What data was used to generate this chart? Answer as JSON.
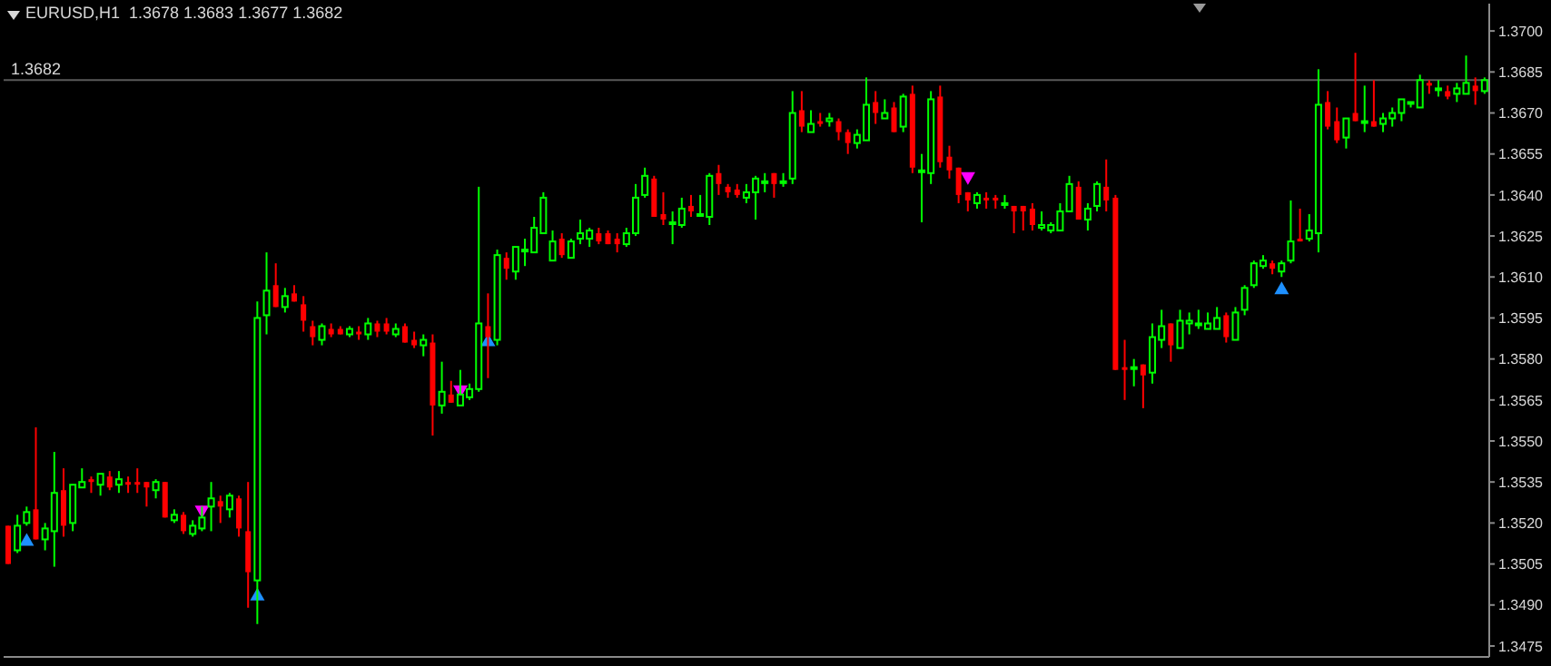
{
  "chart_data": {
    "type": "candlestick",
    "title": "EURUSD,H1  1.3678 1.3683 1.3677 1.3682",
    "categories": [
      null,
      null,
      null,
      null,
      null,
      null,
      null,
      null,
      null,
      null,
      null,
      null,
      null,
      null,
      null,
      null,
      null,
      null,
      null,
      null,
      null,
      null,
      null,
      null,
      null,
      null,
      null,
      null,
      null,
      null,
      null,
      null,
      null,
      null,
      null,
      null,
      null,
      null,
      null,
      null,
      null,
      null,
      null,
      null,
      null,
      null,
      null,
      null,
      null,
      null,
      null,
      null,
      null,
      null,
      null,
      null,
      null,
      null,
      null,
      null,
      null,
      null,
      null,
      null,
      null,
      null,
      null,
      null,
      null,
      null,
      null,
      null,
      null,
      null,
      null,
      null,
      null,
      null,
      null,
      null,
      null,
      null,
      null,
      null,
      null,
      null,
      null,
      null,
      null,
      null,
      null,
      null,
      null,
      null,
      null,
      null,
      null,
      null,
      null,
      null,
      null,
      null,
      null,
      null,
      null,
      null,
      null,
      null,
      null,
      null,
      null,
      null,
      null,
      null,
      null,
      null,
      null,
      null,
      null,
      null,
      null,
      null,
      null,
      null,
      null,
      null,
      null,
      null,
      null,
      null,
      null,
      null,
      null,
      null,
      null,
      null,
      null,
      null,
      null,
      null,
      null,
      null,
      null,
      null,
      null,
      null,
      null,
      null,
      null,
      null,
      null,
      null,
      null,
      null,
      null,
      null,
      null,
      null,
      null,
      null,
      null
    ],
    "ohlc": [
      [
        1.3519,
        1.3519,
        1.3505,
        1.3505
      ],
      [
        1.351,
        1.3523,
        1.3509,
        1.3519
      ],
      [
        1.352,
        1.3526,
        1.3519,
        1.3524
      ],
      [
        1.3525,
        1.3555,
        1.3514,
        1.3514
      ],
      [
        1.3514,
        1.352,
        1.351,
        1.3518
      ],
      [
        1.3517,
        1.3546,
        1.3504,
        1.3531
      ],
      [
        1.3532,
        1.354,
        1.3515,
        1.3519
      ],
      [
        1.352,
        1.3534,
        1.3517,
        1.3534
      ],
      [
        1.3533,
        1.354,
        1.3533,
        1.3535
      ],
      [
        1.3536,
        1.3537,
        1.3531,
        1.3535
      ],
      [
        1.3534,
        1.3538,
        1.353,
        1.3538
      ],
      [
        1.3537,
        1.3539,
        1.3532,
        1.3533
      ],
      [
        1.3534,
        1.3539,
        1.3531,
        1.3536
      ],
      [
        1.3535,
        1.3537,
        1.3531,
        1.3534
      ],
      [
        1.3535,
        1.354,
        1.3531,
        1.3534
      ],
      [
        1.3535,
        1.3535,
        1.3526,
        1.3533
      ],
      [
        1.3532,
        1.3536,
        1.3529,
        1.3535
      ],
      [
        1.3535,
        1.3535,
        1.3522,
        1.3522
      ],
      [
        1.3521,
        1.3525,
        1.352,
        1.3523
      ],
      [
        1.3523,
        1.3524,
        1.3516,
        1.3517
      ],
      [
        1.3516,
        1.3521,
        1.3515,
        1.3519
      ],
      [
        1.3518,
        1.3526,
        1.3517,
        1.3522
      ],
      [
        1.3526,
        1.3535,
        1.3517,
        1.3529
      ],
      [
        1.3528,
        1.353,
        1.352,
        1.3526
      ],
      [
        1.3525,
        1.3531,
        1.3522,
        1.353
      ],
      [
        1.3529,
        1.353,
        1.3515,
        1.3518
      ],
      [
        1.3517,
        1.3535,
        1.3489,
        1.3502
      ],
      [
        1.3499,
        1.3601,
        1.3483,
        1.3595
      ],
      [
        1.3596,
        1.3619,
        1.3589,
        1.3605
      ],
      [
        1.3607,
        1.3615,
        1.3599,
        1.3599
      ],
      [
        1.3599,
        1.3606,
        1.3597,
        1.3603
      ],
      [
        1.3604,
        1.3607,
        1.3601,
        1.3601
      ],
      [
        1.36,
        1.3603,
        1.359,
        1.3594
      ],
      [
        1.3592,
        1.3594,
        1.3585,
        1.3588
      ],
      [
        1.3587,
        1.3593,
        1.3585,
        1.3592
      ],
      [
        1.3591,
        1.3593,
        1.3588,
        1.3589
      ],
      [
        1.3591,
        1.3592,
        1.3589,
        1.3589
      ],
      [
        1.3589,
        1.3592,
        1.3588,
        1.3591
      ],
      [
        1.359,
        1.3592,
        1.3587,
        1.3589
      ],
      [
        1.3589,
        1.3595,
        1.3587,
        1.3593
      ],
      [
        1.3593,
        1.3594,
        1.3588,
        1.359
      ],
      [
        1.3593,
        1.3595,
        1.3589,
        1.359
      ],
      [
        1.3589,
        1.3593,
        1.3588,
        1.3591
      ],
      [
        1.3592,
        1.3593,
        1.3586,
        1.3586
      ],
      [
        1.3587,
        1.359,
        1.3584,
        1.3585
      ],
      [
        1.3585,
        1.3589,
        1.3581,
        1.3587
      ],
      [
        1.3586,
        1.3589,
        1.3552,
        1.3563
      ],
      [
        1.3563,
        1.3579,
        1.356,
        1.3568
      ],
      [
        1.3567,
        1.3572,
        1.3564,
        1.3564
      ],
      [
        1.3563,
        1.3576,
        1.3563,
        1.3567
      ],
      [
        1.3566,
        1.3571,
        1.3565,
        1.3569
      ],
      [
        1.3569,
        1.3643,
        1.3568,
        1.3593
      ],
      [
        1.3592,
        1.3604,
        1.3573,
        1.3588
      ],
      [
        1.3587,
        1.362,
        1.3585,
        1.3618
      ],
      [
        1.3617,
        1.3619,
        1.3609,
        1.3613
      ],
      [
        1.3612,
        1.3621,
        1.3609,
        1.3621
      ],
      [
        1.362,
        1.3624,
        1.3614,
        1.362
      ],
      [
        1.3619,
        1.3632,
        1.3619,
        1.3628
      ],
      [
        1.3626,
        1.3641,
        1.3626,
        1.3639
      ],
      [
        1.3616,
        1.3627,
        1.3616,
        1.3623
      ],
      [
        1.3624,
        1.3626,
        1.3617,
        1.3618
      ],
      [
        1.3617,
        1.3624,
        1.3617,
        1.3623
      ],
      [
        1.3624,
        1.3631,
        1.3622,
        1.3626
      ],
      [
        1.3624,
        1.3628,
        1.3621,
        1.3627
      ],
      [
        1.3626,
        1.3628,
        1.3622,
        1.3623
      ],
      [
        1.3626,
        1.3627,
        1.3622,
        1.3622
      ],
      [
        1.3624,
        1.3626,
        1.3619,
        1.3622
      ],
      [
        1.3622,
        1.3628,
        1.3621,
        1.3626
      ],
      [
        1.3626,
        1.3644,
        1.3625,
        1.3639
      ],
      [
        1.364,
        1.365,
        1.3639,
        1.3647
      ],
      [
        1.3646,
        1.3647,
        1.3632,
        1.3632
      ],
      [
        1.3633,
        1.3641,
        1.3629,
        1.3631
      ],
      [
        1.363,
        1.3634,
        1.3622,
        1.363
      ],
      [
        1.3629,
        1.3639,
        1.3628,
        1.3635
      ],
      [
        1.3636,
        1.364,
        1.3632,
        1.3634
      ],
      [
        1.3633,
        1.364,
        1.3632,
        1.3633
      ],
      [
        1.3632,
        1.3648,
        1.3629,
        1.3647
      ],
      [
        1.3648,
        1.3651,
        1.364,
        1.3644
      ],
      [
        1.3643,
        1.3644,
        1.3639,
        1.3641
      ],
      [
        1.3642,
        1.3644,
        1.3639,
        1.364
      ],
      [
        1.3639,
        1.3644,
        1.3637,
        1.3641
      ],
      [
        1.3641,
        1.3647,
        1.3631,
        1.3646
      ],
      [
        1.3645,
        1.3648,
        1.3641,
        1.3645
      ],
      [
        1.3648,
        1.3648,
        1.3639,
        1.3644
      ],
      [
        1.3645,
        1.3648,
        1.3643,
        1.3645
      ],
      [
        1.3646,
        1.3678,
        1.3644,
        1.367
      ],
      [
        1.3671,
        1.3678,
        1.3663,
        1.3665
      ],
      [
        1.3663,
        1.3671,
        1.3663,
        1.3666
      ],
      [
        1.3667,
        1.367,
        1.3665,
        1.3666
      ],
      [
        1.3667,
        1.367,
        1.3665,
        1.3668
      ],
      [
        1.3667,
        1.3668,
        1.366,
        1.3663
      ],
      [
        1.3663,
        1.3664,
        1.3655,
        1.3659
      ],
      [
        1.3659,
        1.3664,
        1.3657,
        1.3662
      ],
      [
        1.366,
        1.3683,
        1.366,
        1.3673
      ],
      [
        1.3674,
        1.3678,
        1.3666,
        1.367
      ],
      [
        1.3668,
        1.3675,
        1.3668,
        1.367
      ],
      [
        1.3672,
        1.3674,
        1.3663,
        1.3663
      ],
      [
        1.3665,
        1.3677,
        1.3663,
        1.3676
      ],
      [
        1.3677,
        1.368,
        1.3648,
        1.365
      ],
      [
        1.3649,
        1.3655,
        1.363,
        1.3649
      ],
      [
        1.3648,
        1.3678,
        1.3644,
        1.3675
      ],
      [
        1.3676,
        1.368,
        1.365,
        1.3652
      ],
      [
        1.3654,
        1.3658,
        1.3646,
        1.3649
      ],
      [
        1.365,
        1.365,
        1.3637,
        1.364
      ],
      [
        1.3641,
        1.3641,
        1.3634,
        1.3638
      ],
      [
        1.3637,
        1.3641,
        1.3635,
        1.364
      ],
      [
        1.3639,
        1.3641,
        1.3635,
        1.3638
      ],
      [
        1.3639,
        1.364,
        1.3635,
        1.3638
      ],
      [
        1.3637,
        1.364,
        1.3635,
        1.3637
      ],
      [
        1.3636,
        1.3636,
        1.3626,
        1.3634
      ],
      [
        1.3636,
        1.3636,
        1.3627,
        1.3634
      ],
      [
        1.3635,
        1.3637,
        1.3627,
        1.3629
      ],
      [
        1.3628,
        1.3634,
        1.3627,
        1.3629
      ],
      [
        1.3627,
        1.363,
        1.3626,
        1.3629
      ],
      [
        1.3627,
        1.3637,
        1.3627,
        1.3634
      ],
      [
        1.3634,
        1.3647,
        1.3634,
        1.3644
      ],
      [
        1.3643,
        1.3645,
        1.3631,
        1.3631
      ],
      [
        1.3631,
        1.3637,
        1.3627,
        1.3635
      ],
      [
        1.3636,
        1.3645,
        1.3634,
        1.3644
      ],
      [
        1.3643,
        1.3653,
        1.3634,
        1.3638
      ],
      [
        1.3639,
        1.364,
        1.3576,
        1.3576
      ],
      [
        1.3577,
        1.3587,
        1.3565,
        1.3576
      ],
      [
        1.3577,
        1.358,
        1.357,
        1.3577
      ],
      [
        1.3578,
        1.3578,
        1.3562,
        1.3574
      ],
      [
        1.3575,
        1.3593,
        1.3571,
        1.3588
      ],
      [
        1.3587,
        1.3598,
        1.3584,
        1.3592
      ],
      [
        1.3593,
        1.3593,
        1.3579,
        1.3585
      ],
      [
        1.3584,
        1.3598,
        1.3584,
        1.3594
      ],
      [
        1.3593,
        1.3597,
        1.3589,
        1.3594
      ],
      [
        1.3593,
        1.3598,
        1.3591,
        1.3593
      ],
      [
        1.3591,
        1.3597,
        1.3591,
        1.3593
      ],
      [
        1.3591,
        1.3599,
        1.3591,
        1.3595
      ],
      [
        1.3596,
        1.3597,
        1.3586,
        1.3588
      ],
      [
        1.3587,
        1.3599,
        1.3587,
        1.3597
      ],
      [
        1.3598,
        1.3607,
        1.3596,
        1.3606
      ],
      [
        1.3607,
        1.3616,
        1.3606,
        1.3615
      ],
      [
        1.3614,
        1.3618,
        1.3613,
        1.3616
      ],
      [
        1.3615,
        1.3616,
        1.3611,
        1.3613
      ],
      [
        1.3612,
        1.3616,
        1.361,
        1.3615
      ],
      [
        1.3616,
        1.3638,
        1.3615,
        1.3623
      ],
      [
        1.3624,
        1.3635,
        1.3623,
        1.3623
      ],
      [
        1.3624,
        1.3633,
        1.3623,
        1.3627
      ],
      [
        1.3626,
        1.3686,
        1.3619,
        1.3673
      ],
      [
        1.3674,
        1.3678,
        1.3664,
        1.3665
      ],
      [
        1.3667,
        1.3672,
        1.3659,
        1.366
      ],
      [
        1.3661,
        1.3668,
        1.3657,
        1.3668
      ],
      [
        1.367,
        1.3692,
        1.3667,
        1.3667
      ],
      [
        1.3667,
        1.368,
        1.3663,
        1.3667
      ],
      [
        1.3667,
        1.3682,
        1.3665,
        1.3665
      ],
      [
        1.3666,
        1.367,
        1.3663,
        1.3668
      ],
      [
        1.3668,
        1.3672,
        1.3665,
        1.367
      ],
      [
        1.367,
        1.3675,
        1.3667,
        1.3675
      ],
      [
        1.3674,
        1.3674,
        1.3672,
        1.3674
      ],
      [
        1.3672,
        1.3684,
        1.3672,
        1.3682
      ],
      [
        1.3681,
        1.3682,
        1.3677,
        1.368
      ],
      [
        1.3679,
        1.3682,
        1.3676,
        1.3679
      ],
      [
        1.3678,
        1.368,
        1.3675,
        1.3676
      ],
      [
        1.3677,
        1.3681,
        1.3674,
        1.3679
      ],
      [
        1.3677,
        1.3691,
        1.3677,
        1.3681
      ],
      [
        1.368,
        1.3683,
        1.3673,
        1.3678
      ],
      [
        1.3678,
        1.3683,
        1.3677,
        1.3682
      ]
    ],
    "colors": [
      "#ff0000",
      "#00ff00",
      "#00ff00",
      "#ff0000",
      "#00ff00",
      "#00ff00",
      "#ff0000",
      "#00ff00",
      "#00ff00",
      "#ff0000",
      "#00ff00",
      "#ff0000",
      "#00ff00",
      "#ff0000",
      "#ff0000",
      "#ff0000",
      "#00ff00",
      "#ff0000",
      "#00ff00",
      "#ff0000",
      "#00ff00",
      "#00ff00",
      "#00ff00",
      "#ff0000",
      "#00ff00",
      "#ff0000",
      "#ff0000",
      "#00ff00",
      "#00ff00",
      "#ff0000",
      "#00ff00",
      "#ff0000",
      "#ff0000",
      "#ff0000",
      "#00ff00",
      "#ff0000",
      "#ff0000",
      "#00ff00",
      "#ff0000",
      "#00ff00",
      "#ff0000",
      "#ff0000",
      "#00ff00",
      "#ff0000",
      "#ff0000",
      "#00ff00",
      "#ff0000",
      "#00ff00",
      "#ff0000",
      "#00ff00",
      "#00ff00",
      "#00ff00",
      "#ff0000",
      "#00ff00",
      "#ff0000",
      "#00ff00",
      "#00ff00",
      "#00ff00",
      "#00ff00",
      "#00ff00",
      "#ff0000",
      "#00ff00",
      "#00ff00",
      "#00ff00",
      "#ff0000",
      "#ff0000",
      "#ff0000",
      "#00ff00",
      "#00ff00",
      "#00ff00",
      "#ff0000",
      "#ff0000",
      "#00ff00",
      "#00ff00",
      "#ff0000",
      "#00ff00",
      "#00ff00",
      "#ff0000",
      "#ff0000",
      "#ff0000",
      "#00ff00",
      "#00ff00",
      "#00ff00",
      "#ff0000",
      "#00ff00",
      "#00ff00",
      "#ff0000",
      "#00ff00",
      "#ff0000",
      "#00ff00",
      "#ff0000",
      "#ff0000",
      "#00ff00",
      "#00ff00",
      "#ff0000",
      "#00ff00",
      "#ff0000",
      "#00ff00",
      "#ff0000",
      "#00ff00",
      "#00ff00",
      "#ff0000",
      "#ff0000",
      "#ff0000",
      "#ff0000",
      "#00ff00",
      "#ff0000",
      "#ff0000",
      "#00ff00",
      "#ff0000",
      "#ff0000",
      "#ff0000",
      "#00ff00",
      "#00ff00",
      "#00ff00",
      "#00ff00",
      "#ff0000",
      "#00ff00",
      "#00ff00",
      "#ff0000",
      "#ff0000",
      "#ff0000",
      "#00ff00",
      "#ff0000",
      "#00ff00",
      "#00ff00",
      "#ff0000",
      "#00ff00",
      "#00ff00",
      "#00ff00",
      "#00ff00",
      "#00ff00",
      "#ff0000",
      "#00ff00",
      "#00ff00",
      "#00ff00",
      "#00ff00",
      "#ff0000",
      "#00ff00",
      "#00ff00",
      "#ff0000",
      "#00ff00",
      "#00ff00",
      "#ff0000",
      "#ff0000",
      "#00ff00",
      "#ff0000",
      "#00ff00",
      "#ff0000",
      "#00ff00",
      "#00ff00",
      "#00ff00",
      "#00ff00",
      "#00ff00",
      "#ff0000",
      "#00ff00",
      "#ff0000",
      "#00ff00",
      "#00ff00",
      "#ff0000",
      "#00ff00"
    ],
    "series": [
      {
        "type": "scatter",
        "color": "#1e90ff",
        "marker": "triangle",
        "values": [
          null,
          null,
          1.3514,
          null,
          null,
          null,
          null,
          null,
          null,
          null,
          null,
          null,
          null,
          null,
          null,
          null,
          null,
          null,
          null,
          null,
          null,
          null,
          null,
          null,
          null,
          null,
          null,
          1.3494,
          null,
          null,
          null,
          null,
          null,
          null,
          null,
          null,
          null,
          null,
          null,
          null,
          null,
          null,
          null,
          null,
          null,
          null,
          null,
          null,
          null,
          null,
          null,
          null,
          1.3587,
          null,
          null,
          null,
          null,
          null,
          null,
          null,
          null,
          null,
          null,
          null,
          null,
          null,
          null,
          null,
          null,
          null,
          null,
          null,
          null,
          null,
          null,
          null,
          null,
          null,
          null,
          null,
          null,
          null,
          null,
          null,
          null,
          null,
          null,
          null,
          null,
          null,
          null,
          null,
          null,
          null,
          null,
          null,
          null,
          null,
          null,
          null,
          null,
          null,
          null,
          null,
          null,
          null,
          null,
          null,
          null,
          null,
          null,
          null,
          null,
          null,
          null,
          null,
          null,
          null,
          null,
          null,
          null,
          null,
          null,
          null,
          null,
          null,
          null,
          null,
          null,
          null,
          null,
          null,
          null,
          null,
          null,
          null,
          null,
          null,
          1.3606,
          null,
          null,
          null,
          null,
          null,
          null,
          null,
          null,
          null,
          null,
          null,
          null,
          null,
          null,
          null,
          null,
          null,
          null,
          null,
          null,
          null,
          null
        ]
      },
      {
        "type": "scatter",
        "color": "#ff00ff",
        "marker": "triangle",
        "values": [
          null,
          null,
          null,
          null,
          null,
          null,
          null,
          null,
          null,
          null,
          null,
          null,
          null,
          null,
          null,
          null,
          null,
          null,
          null,
          null,
          null,
          1.3524,
          null,
          null,
          null,
          null,
          null,
          null,
          null,
          null,
          null,
          null,
          null,
          null,
          null,
          null,
          null,
          null,
          null,
          null,
          null,
          null,
          null,
          null,
          null,
          null,
          null,
          null,
          null,
          1.3568,
          null,
          null,
          null,
          null,
          null,
          null,
          null,
          null,
          null,
          null,
          null,
          null,
          null,
          null,
          null,
          null,
          null,
          null,
          null,
          null,
          null,
          null,
          null,
          null,
          null,
          null,
          null,
          null,
          null,
          null,
          null,
          null,
          null,
          null,
          null,
          null,
          null,
          null,
          null,
          null,
          null,
          null,
          null,
          null,
          null,
          null,
          null,
          null,
          null,
          null,
          null,
          null,
          null,
          null,
          1.3646,
          null,
          null,
          null,
          null,
          null,
          null,
          null,
          null,
          null,
          null,
          null,
          null,
          null,
          null,
          null,
          null,
          null,
          null,
          null,
          null,
          null,
          null,
          null,
          null,
          null,
          null,
          null,
          null,
          null,
          null,
          null,
          null,
          null,
          null,
          null,
          null,
          null,
          null,
          null,
          null,
          null,
          null,
          null,
          null,
          null,
          null,
          null,
          null,
          null,
          null,
          null,
          null,
          null,
          null,
          null,
          null
        ]
      }
    ],
    "ylim": [
      1.3471,
      1.371
    ],
    "yticks": [
      1.3475,
      {
        "value": 1.349,
        "label": "1.3490"
      },
      1.3505,
      {
        "value": 1.352,
        "label": "1.3520"
      },
      1.3535,
      {
        "value": 1.355,
        "label": "1.3550"
      },
      1.3565,
      {
        "value": 1.358,
        "label": "1.3580"
      },
      1.3595,
      {
        "value": 1.361,
        "label": "1.3610"
      },
      1.3625,
      {
        "value": 1.364,
        "label": "1.3640"
      },
      1.3655,
      {
        "value": 1.367,
        "label": "1.3670"
      },
      1.3685,
      {
        "value": 1.37,
        "label": "1.3700"
      }
    ],
    "ref_lines": [
      {
        "axis": "y",
        "value": 1.3682,
        "label": "1.3682",
        "color": "#5a5a5a"
      }
    ],
    "tick_labels": "y"
  }
}
